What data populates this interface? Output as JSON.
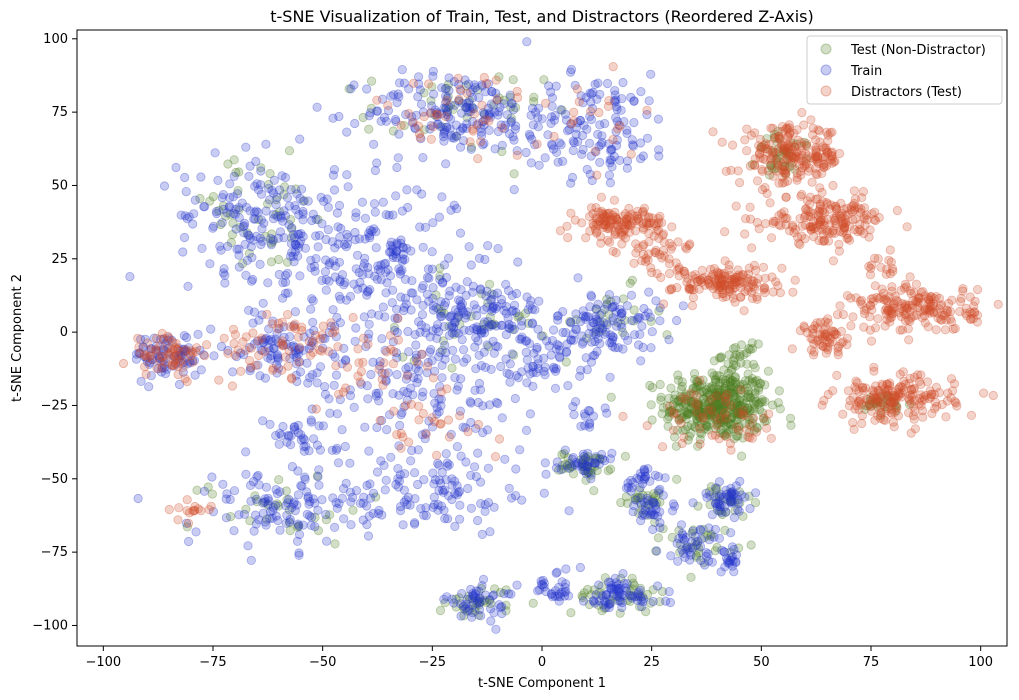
{
  "chart_data": {
    "type": "scatter",
    "title": "t-SNE Visualization of Train, Test, and Distractors (Reordered Z-Axis)",
    "xlabel": "t-SNE Component 1",
    "ylabel": "t-SNE Component 2",
    "xlim": [
      -106,
      106
    ],
    "ylim": [
      -107,
      103
    ],
    "xticks": [
      -100,
      -75,
      -50,
      -25,
      0,
      25,
      50,
      75,
      100
    ],
    "yticks": [
      100,
      75,
      50,
      25,
      0,
      -25,
      -50,
      -75,
      -100
    ],
    "legend_position": "top-right",
    "grid": false,
    "point_opacity": 0.25,
    "draw_order": [
      "Test (Non-Distractor)",
      "Train",
      "Distractors (Test)"
    ],
    "series": [
      {
        "name": "Test (Non-Distractor)",
        "color": "#4a7d1e",
        "clusters": [
          {
            "cx": 40,
            "cy": -25,
            "sx": 6,
            "sy": 6,
            "n": 420
          },
          {
            "cx": 45,
            "cy": -8,
            "sx": 2,
            "sy": 2,
            "n": 25
          },
          {
            "cx": 55,
            "cy": 60,
            "sx": 3,
            "sy": 4,
            "n": 40
          },
          {
            "cx": 78,
            "cy": -25,
            "sx": 3,
            "sy": 2,
            "n": 25
          },
          {
            "cx": 10,
            "cy": -45,
            "sx": 3,
            "sy": 2,
            "n": 40
          },
          {
            "cx": 17,
            "cy": -90,
            "sx": 5,
            "sy": 3,
            "n": 40
          },
          {
            "cx": -14,
            "cy": -92,
            "sx": 4,
            "sy": 3,
            "n": 30
          },
          {
            "cx": 36,
            "cy": -72,
            "sx": 4,
            "sy": 3,
            "n": 30
          },
          {
            "cx": -20,
            "cy": 75,
            "sx": 10,
            "sy": 7,
            "n": 45
          },
          {
            "cx": -65,
            "cy": 40,
            "sx": 10,
            "sy": 10,
            "n": 45
          },
          {
            "cx": -15,
            "cy": 5,
            "sx": 8,
            "sy": 7,
            "n": 35
          },
          {
            "cx": 15,
            "cy": 3,
            "sx": 6,
            "sy": 6,
            "n": 25
          },
          {
            "cx": 42,
            "cy": -58,
            "sx": 3,
            "sy": 3,
            "n": 25
          },
          {
            "cx": 22,
            "cy": -57,
            "sx": 4,
            "sy": 3,
            "n": 25
          },
          {
            "cx": -60,
            "cy": -60,
            "sx": 10,
            "sy": 6,
            "n": 30
          }
        ]
      },
      {
        "name": "Train",
        "color": "#2233cc",
        "clusters": [
          {
            "cx": -20,
            "cy": 75,
            "sx": 10,
            "sy": 7,
            "n": 170
          },
          {
            "cx": 12,
            "cy": 70,
            "sx": 9,
            "sy": 9,
            "n": 140
          },
          {
            "cx": -65,
            "cy": 40,
            "sx": 9,
            "sy": 10,
            "n": 150
          },
          {
            "cx": -40,
            "cy": 25,
            "sx": 12,
            "sy": 13,
            "n": 230
          },
          {
            "cx": -85,
            "cy": -8,
            "sx": 4,
            "sy": 4,
            "n": 80
          },
          {
            "cx": -60,
            "cy": -5,
            "sx": 6,
            "sy": 5,
            "n": 90
          },
          {
            "cx": -15,
            "cy": 5,
            "sx": 8,
            "sy": 7,
            "n": 160
          },
          {
            "cx": 15,
            "cy": 2,
            "sx": 6,
            "sy": 6,
            "n": 120
          },
          {
            "cx": -30,
            "cy": -20,
            "sx": 14,
            "sy": 12,
            "n": 160
          },
          {
            "cx": -25,
            "cy": -55,
            "sx": 12,
            "sy": 7,
            "n": 110
          },
          {
            "cx": -60,
            "cy": -60,
            "sx": 10,
            "sy": 7,
            "n": 110
          },
          {
            "cx": -55,
            "cy": -35,
            "sx": 4,
            "sy": 3,
            "n": 30
          },
          {
            "cx": 10,
            "cy": -45,
            "sx": 3,
            "sy": 2,
            "n": 40
          },
          {
            "cx": 22,
            "cy": -50,
            "sx": 2,
            "sy": 2,
            "n": 25
          },
          {
            "cx": 25,
            "cy": -60,
            "sx": 3,
            "sy": 3,
            "n": 35
          },
          {
            "cx": 42,
            "cy": -57,
            "sx": 3,
            "sy": 3,
            "n": 50
          },
          {
            "cx": 35,
            "cy": -72,
            "sx": 4,
            "sy": 3,
            "n": 45
          },
          {
            "cx": 43,
            "cy": -78,
            "sx": 2,
            "sy": 2,
            "n": 20
          },
          {
            "cx": 17,
            "cy": -90,
            "sx": 5,
            "sy": 3,
            "n": 70
          },
          {
            "cx": 3,
            "cy": -87,
            "sx": 3,
            "sy": 3,
            "n": 30
          },
          {
            "cx": -14,
            "cy": -92,
            "sx": 4,
            "sy": 3,
            "n": 50
          },
          {
            "cx": 10,
            "cy": -28,
            "sx": 2,
            "sy": 2,
            "n": 15
          },
          {
            "cx": -2,
            "cy": -12,
            "sx": 5,
            "sy": 4,
            "n": 45
          }
        ]
      },
      {
        "name": "Distractors (Test)",
        "color": "#d04a28",
        "clusters": [
          {
            "cx": 57,
            "cy": 60,
            "sx": 6,
            "sy": 5,
            "n": 200
          },
          {
            "cx": 65,
            "cy": 38,
            "sx": 7,
            "sy": 4,
            "n": 180
          },
          {
            "cx": 18,
            "cy": 37,
            "sx": 5,
            "sy": 3,
            "n": 140
          },
          {
            "cx": 27,
            "cy": 26,
            "sx": 4,
            "sy": 3,
            "n": 35
          },
          {
            "cx": 42,
            "cy": 17,
            "sx": 6,
            "sy": 3,
            "n": 150
          },
          {
            "cx": 85,
            "cy": 8,
            "sx": 7,
            "sy": 4,
            "n": 180
          },
          {
            "cx": 65,
            "cy": -2,
            "sx": 3,
            "sy": 3,
            "n": 60
          },
          {
            "cx": 80,
            "cy": -23,
            "sx": 7,
            "sy": 4,
            "n": 180
          },
          {
            "cx": 40,
            "cy": -30,
            "sx": 7,
            "sy": 5,
            "n": 60
          },
          {
            "cx": -85,
            "cy": -8,
            "sx": 4,
            "sy": 4,
            "n": 60
          },
          {
            "cx": -60,
            "cy": -5,
            "sx": 8,
            "sy": 6,
            "n": 60
          },
          {
            "cx": -20,
            "cy": 75,
            "sx": 10,
            "sy": 7,
            "n": 40
          },
          {
            "cx": -40,
            "cy": -10,
            "sx": 8,
            "sy": 8,
            "n": 40
          },
          {
            "cx": -25,
            "cy": -30,
            "sx": 8,
            "sy": 6,
            "n": 25
          },
          {
            "cx": 10,
            "cy": 70,
            "sx": 8,
            "sy": 8,
            "n": 20
          },
          {
            "cx": 78,
            "cy": 23,
            "sx": 2,
            "sy": 2,
            "n": 15
          },
          {
            "cx": -80,
            "cy": -60,
            "sx": 3,
            "sy": 2,
            "n": 15
          }
        ]
      }
    ]
  }
}
